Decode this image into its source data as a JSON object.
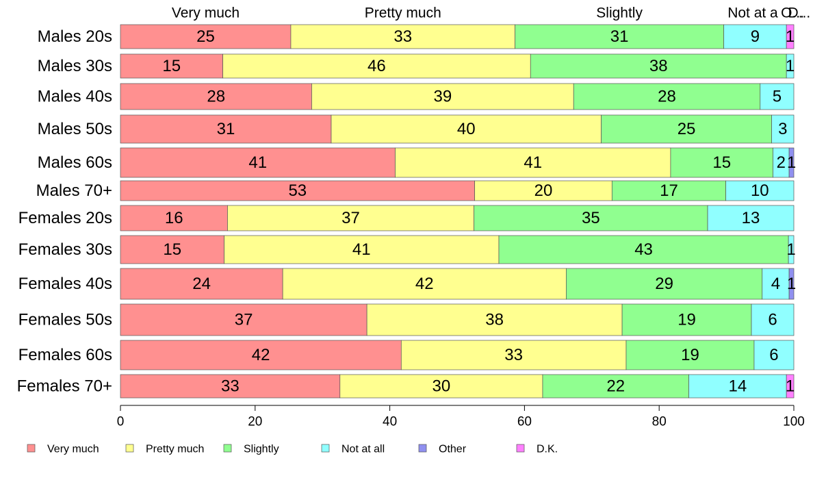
{
  "chart_data": {
    "type": "bar",
    "orientation": "horizontal",
    "stacked": true,
    "categories": [
      "Males 20s",
      "Males 30s",
      "Males 40s",
      "Males 50s",
      "Males 60s",
      "Males 70+",
      "Females 20s",
      "Females 30s",
      "Females 40s",
      "Females 50s",
      "Females 60s",
      "Females 70+"
    ],
    "series": [
      {
        "name": "Very much",
        "color": "#FF9090",
        "values": [
          25.3,
          15.2,
          28.4,
          31.3,
          40.8,
          52.6,
          15.9,
          15.4,
          24.1,
          36.6,
          41.7,
          32.6
        ]
      },
      {
        "name": "Pretty much",
        "color": "#FFFF90",
        "values": [
          33.3,
          45.7,
          38.9,
          40.1,
          40.9,
          20.4,
          36.6,
          40.8,
          42.1,
          37.9,
          33.4,
          30.1
        ]
      },
      {
        "name": "Slightly",
        "color": "#90FF90",
        "values": [
          31.0,
          38.0,
          27.7,
          25.3,
          15.2,
          16.9,
          34.7,
          43.0,
          29.1,
          19.2,
          19.0,
          21.7
        ]
      },
      {
        "name": "Not at all",
        "color": "#90FFFF",
        "values": [
          9.3,
          1.1,
          5.0,
          3.3,
          2.4,
          10.1,
          12.8,
          0.8,
          4.0,
          6.3,
          5.9,
          14.5
        ]
      },
      {
        "name": "Other",
        "color": "#9090F0",
        "values": [
          0,
          0,
          0,
          0,
          0.7,
          0,
          0,
          0,
          0.7,
          0,
          0,
          0
        ]
      },
      {
        "name": "D.K.",
        "color": "#FF80FF",
        "values": [
          1.1,
          0,
          0,
          0,
          0,
          0,
          0,
          0,
          0,
          0,
          0,
          1.1
        ]
      }
    ],
    "bar_labels": [
      [
        "25",
        "33",
        "31",
        "9",
        "",
        "1"
      ],
      [
        "15",
        "46",
        "38",
        "1",
        "",
        ""
      ],
      [
        "28",
        "39",
        "28",
        "5",
        "",
        ""
      ],
      [
        "31",
        "40",
        "25",
        "3",
        "",
        ""
      ],
      [
        "41",
        "41",
        "15",
        "2",
        "1",
        ""
      ],
      [
        "53",
        "20",
        "17",
        "10",
        "",
        ""
      ],
      [
        "16",
        "37",
        "35",
        "13",
        "",
        ""
      ],
      [
        "15",
        "41",
        "43",
        "1",
        "",
        ""
      ],
      [
        "24",
        "42",
        "29",
        "4",
        "1",
        ""
      ],
      [
        "37",
        "38",
        "19",
        "6",
        "",
        ""
      ],
      [
        "42",
        "33",
        "19",
        "6",
        "",
        ""
      ],
      [
        "33",
        "30",
        "22",
        "14",
        "",
        "1"
      ]
    ],
    "top_labels": [
      {
        "text": "Very much",
        "at": 12.65
      },
      {
        "text": "Pretty much",
        "at": 41.95
      },
      {
        "text": "Slightly",
        "at": 74.1
      },
      {
        "text": "Not at a",
        "at": 93.9
      },
      {
        "text": "O...",
        "at": 99.8
      },
      {
        "text": "D...",
        "at": 100.8
      }
    ],
    "xticks": [
      0,
      20,
      40,
      60,
      80,
      100
    ],
    "xlim": [
      0,
      100
    ],
    "grid": false,
    "legend_position": "bottom-left",
    "title": "",
    "xlabel": "",
    "ylabel": ""
  }
}
